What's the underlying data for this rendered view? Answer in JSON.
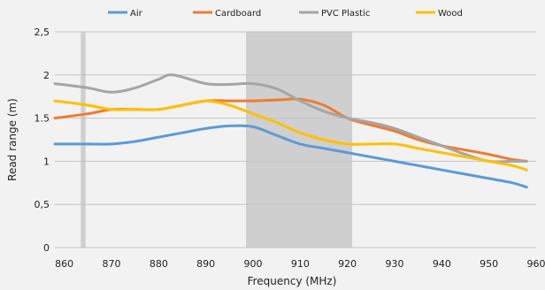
{
  "chart_data": {
    "type": "line",
    "xlabel": "Frequency (MHz)",
    "ylabel": "Read range (m)",
    "xlim": [
      858,
      960
    ],
    "ylim": [
      0,
      2.5
    ],
    "x_ticks": [
      860,
      870,
      880,
      890,
      900,
      910,
      920,
      930,
      940,
      950,
      960
    ],
    "y_ticks": [
      {
        "value": 0,
        "label": "0"
      },
      {
        "value": 0.5,
        "label": "0,5"
      },
      {
        "value": 1,
        "label": "1"
      },
      {
        "value": 1.5,
        "label": "1.5"
      },
      {
        "value": 2,
        "label": "2"
      },
      {
        "value": 2.5,
        "label": "2,5"
      }
    ],
    "grid": true,
    "legend_position": "top",
    "shaded_bands": [
      [
        863.5,
        864.5
      ],
      [
        898.5,
        921
      ]
    ],
    "series": [
      {
        "name": "Air",
        "color": "#5b9bd5",
        "x": [
          858,
          865,
          870,
          875,
          880,
          885,
          890,
          895,
          900,
          905,
          910,
          915,
          920,
          925,
          930,
          935,
          940,
          945,
          950,
          955,
          958
        ],
        "y": [
          1.2,
          1.2,
          1.2,
          1.23,
          1.28,
          1.33,
          1.38,
          1.41,
          1.4,
          1.3,
          1.2,
          1.15,
          1.1,
          1.05,
          1.0,
          0.95,
          0.9,
          0.85,
          0.8,
          0.75,
          0.7
        ]
      },
      {
        "name": "Cardboard",
        "color": "#ed7d31",
        "x": [
          858,
          865,
          870,
          875,
          880,
          885,
          890,
          895,
          900,
          905,
          910,
          915,
          920,
          925,
          930,
          935,
          940,
          945,
          950,
          955,
          958
        ],
        "y": [
          1.5,
          1.55,
          1.6,
          1.6,
          1.6,
          1.65,
          1.7,
          1.7,
          1.7,
          1.71,
          1.72,
          1.65,
          1.5,
          1.42,
          1.35,
          1.25,
          1.18,
          1.13,
          1.08,
          1.02,
          1.0
        ]
      },
      {
        "name": "PVC Plastic",
        "color": "#a5a5a5",
        "x": [
          858,
          865,
          870,
          875,
          880,
          883,
          890,
          895,
          900,
          905,
          910,
          915,
          920,
          925,
          930,
          935,
          940,
          945,
          950,
          955,
          958
        ],
        "y": [
          1.9,
          1.85,
          1.8,
          1.85,
          1.95,
          2.0,
          1.9,
          1.89,
          1.9,
          1.84,
          1.7,
          1.58,
          1.5,
          1.45,
          1.38,
          1.28,
          1.18,
          1.08,
          1.0,
          1.0,
          1.0
        ]
      },
      {
        "name": "Wood",
        "color": "#ffc000",
        "x": [
          858,
          865,
          870,
          875,
          880,
          885,
          890,
          895,
          900,
          905,
          910,
          915,
          920,
          925,
          930,
          935,
          940,
          945,
          950,
          955,
          958
        ],
        "y": [
          1.7,
          1.65,
          1.6,
          1.6,
          1.6,
          1.65,
          1.7,
          1.65,
          1.55,
          1.45,
          1.33,
          1.25,
          1.2,
          1.2,
          1.2,
          1.15,
          1.1,
          1.05,
          1.0,
          0.95,
          0.9
        ]
      }
    ]
  }
}
